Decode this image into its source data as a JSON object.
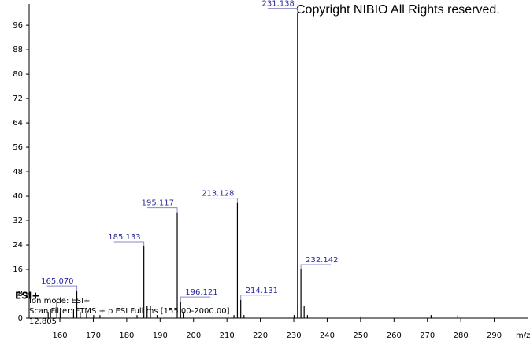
{
  "chart_data": {
    "type": "stem",
    "annotations": {
      "copyright": "Copyright NIBIO All Rights reserved.",
      "polarity": "ESI+",
      "ion_mode": "Ion mode: ESI+",
      "scan_filter": "Scan Filter: FTMS + p ESI Full ms [155.00-2000.00]",
      "retention": "12.805"
    },
    "x_label": "m/z",
    "x": [
      156.5,
      157.2,
      159.1,
      160.1,
      164.1,
      165.07,
      166.1,
      168.0,
      170.1,
      172.0,
      183.1,
      185.133,
      186.1,
      187.1,
      189.1,
      195.117,
      196.121,
      197.1,
      212.1,
      213.128,
      214.131,
      215.1,
      230.1,
      231.138,
      232.142,
      233.1,
      234.1,
      250.1,
      271.1,
      279.1
    ],
    "values": [
      2,
      3,
      6,
      2,
      3,
      9,
      2,
      1.5,
      1,
      1,
      1,
      23.5,
      4,
      4,
      1,
      34.7,
      5.4,
      2,
      1,
      37.8,
      6,
      1,
      1,
      100,
      16,
      4,
      1,
      0.6,
      1,
      1
    ],
    "peak_labels": [
      null,
      null,
      null,
      null,
      null,
      "165.070",
      null,
      null,
      null,
      null,
      null,
      "185.133",
      null,
      null,
      null,
      "195.117",
      "196.121",
      null,
      null,
      "213.128",
      "214.131",
      null,
      null,
      "231.138",
      "232.142",
      null,
      null,
      null,
      null,
      null
    ],
    "color": "#000000",
    "label_color": "#2a2a9a",
    "xlim": [
      150.8,
      300
    ],
    "xticks": [
      160,
      170,
      180,
      190,
      200,
      210,
      220,
      230,
      240,
      250,
      260,
      270,
      280,
      290
    ],
    "ylim": [
      0,
      103
    ],
    "yticks": [
      0,
      8,
      16,
      24,
      32,
      40,
      48,
      56,
      64,
      72,
      80,
      88,
      96
    ]
  }
}
